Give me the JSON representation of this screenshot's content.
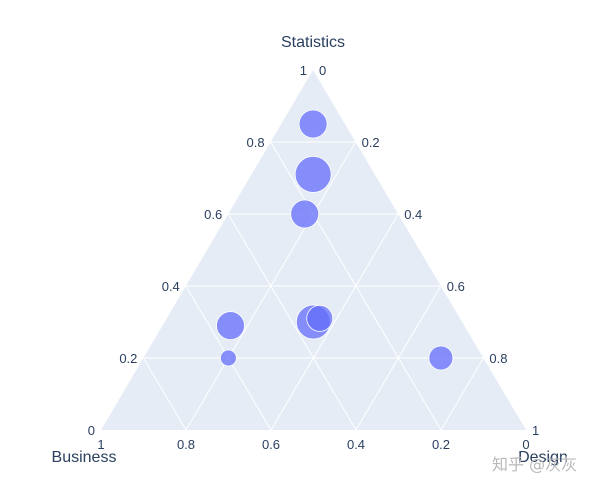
{
  "chart_data": {
    "type": "scatter",
    "subtype": "ternary",
    "axes": {
      "a": {
        "title": "Statistics",
        "range": [
          0,
          1
        ]
      },
      "b": {
        "title": "Business",
        "range": [
          0,
          1
        ]
      },
      "c": {
        "title": "Design",
        "range": [
          0,
          1
        ]
      }
    },
    "ticks": [
      0,
      0.2,
      0.4,
      0.6,
      0.8,
      1
    ],
    "tick_labels": [
      "0",
      "0.2",
      "0.4",
      "0.6",
      "0.8",
      "1"
    ],
    "grid": true,
    "series": [
      {
        "marker_color": "#636efa",
        "points": [
          {
            "a": 0.85,
            "b": 0.075,
            "c": 0.075,
            "size": 14
          },
          {
            "a": 0.71,
            "b": 0.145,
            "c": 0.145,
            "size": 18
          },
          {
            "a": 0.6,
            "b": 0.22,
            "c": 0.18,
            "size": 14
          },
          {
            "a": 0.29,
            "b": 0.55,
            "c": 0.16,
            "size": 14
          },
          {
            "a": 0.3,
            "b": 0.35,
            "c": 0.35,
            "size": 17
          },
          {
            "a": 0.31,
            "b": 0.33,
            "c": 0.36,
            "size": 13
          },
          {
            "a": 0.2,
            "b": 0.6,
            "c": 0.2,
            "size": 8
          },
          {
            "a": 0.2,
            "b": 0.1,
            "c": 0.7,
            "size": 12
          }
        ]
      }
    ]
  },
  "watermark": "知乎 @灰灰"
}
